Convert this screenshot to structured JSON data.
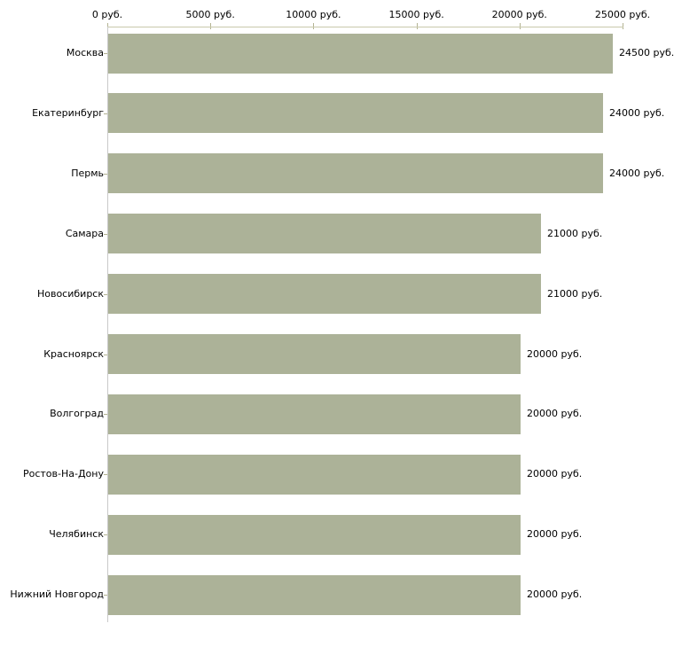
{
  "chart_data": {
    "type": "bar",
    "orientation": "horizontal",
    "title": "",
    "xlabel": "",
    "ylabel": "",
    "grid": false,
    "legend": "none",
    "x_axis": {
      "position": "top",
      "min": 0,
      "max": 25000,
      "ticks": [
        0,
        5000,
        10000,
        15000,
        20000,
        25000
      ],
      "tick_labels": [
        "0 руб.",
        "5000 руб.",
        "10000 руб.",
        "15000 руб.",
        "20000 руб.",
        "25000 руб."
      ]
    },
    "categories": [
      "Москва",
      "Екатеринбург",
      "Пермь",
      "Самара",
      "Новосибирск",
      "Красноярск",
      "Волгоград",
      "Ростов-На-Дону",
      "Челябинск",
      "Нижний Новгород"
    ],
    "values": [
      24500,
      24000,
      24000,
      21000,
      21000,
      20000,
      20000,
      20000,
      20000,
      20000
    ],
    "value_labels": [
      "24500 руб.",
      "24000 руб.",
      "24000 руб.",
      "21000 руб.",
      "21000 руб.",
      "20000 руб.",
      "20000 руб.",
      "20000 руб.",
      "20000 руб.",
      "20000 руб."
    ],
    "colors": {
      "bar": "#acb298",
      "axis_line": "#c9c9ab",
      "tick": "#b3b392",
      "baseline": "#c9c9c9",
      "text": "#000000",
      "background": "#ffffff"
    }
  }
}
